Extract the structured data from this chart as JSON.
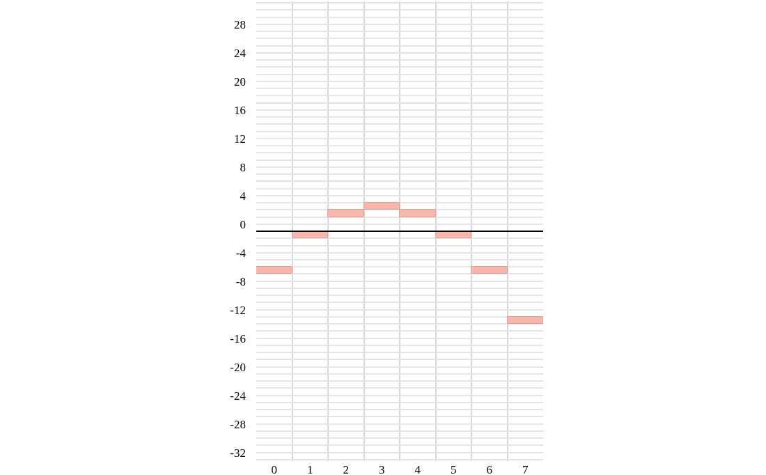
{
  "chart_data": {
    "type": "bar",
    "categories": [
      "0",
      "1",
      "2",
      "3",
      "4",
      "5",
      "6",
      "7"
    ],
    "values": [
      1,
      1,
      1,
      1,
      1,
      1,
      1,
      1
    ],
    "base": [
      -7,
      -2,
      1,
      2,
      1,
      -2,
      -7,
      -14
    ],
    "color": "#f9b6ab",
    "ylim": [
      -33.2,
      31.2
    ],
    "yticks": [
      {
        "value": -33,
        "label": null
      },
      -32,
      {
        "value": -31,
        "label": null
      },
      {
        "value": -30,
        "label": null
      },
      {
        "value": -29,
        "label": null
      },
      -28,
      {
        "value": -27,
        "label": null
      },
      {
        "value": -26,
        "label": null
      },
      {
        "value": -25,
        "label": null
      },
      -24,
      {
        "value": -23,
        "label": null
      },
      {
        "value": -22,
        "label": null
      },
      {
        "value": -21,
        "label": null
      },
      -20,
      {
        "value": -19,
        "label": null
      },
      {
        "value": -18,
        "label": null
      },
      {
        "value": -17,
        "label": null
      },
      -16,
      {
        "value": -15,
        "label": null
      },
      {
        "value": -14,
        "label": null
      },
      {
        "value": -13,
        "label": null
      },
      -12,
      {
        "value": -11,
        "label": null
      },
      {
        "value": -10,
        "label": null
      },
      {
        "value": -9,
        "label": null
      },
      -8,
      {
        "value": -7,
        "label": null
      },
      {
        "value": -6,
        "label": null
      },
      {
        "value": -5,
        "label": null
      },
      -4,
      {
        "value": -3,
        "label": null
      },
      {
        "value": -2,
        "label": null
      },
      {
        "value": -1,
        "label": null
      },
      0,
      {
        "value": 1,
        "label": null
      },
      {
        "value": 2,
        "label": null
      },
      {
        "value": 3,
        "label": null
      },
      4,
      {
        "value": 5,
        "label": null
      },
      {
        "value": 6,
        "label": null
      },
      {
        "value": 7,
        "label": null
      },
      8,
      {
        "value": 9,
        "label": null
      },
      {
        "value": 10,
        "label": null
      },
      {
        "value": 11,
        "label": null
      },
      12,
      {
        "value": 13,
        "label": null
      },
      {
        "value": 14,
        "label": null
      },
      {
        "value": 15,
        "label": null
      },
      16,
      {
        "value": 17,
        "label": null
      },
      {
        "value": 18,
        "label": null
      },
      {
        "value": 19,
        "label": null
      },
      20,
      {
        "value": 21,
        "label": null
      },
      {
        "value": 22,
        "label": null
      },
      {
        "value": 23,
        "label": null
      },
      24,
      {
        "value": 25,
        "label": null
      },
      {
        "value": 26,
        "label": null
      },
      {
        "value": 27,
        "label": null
      },
      28,
      {
        "value": 29,
        "label": null
      },
      {
        "value": 30,
        "label": null
      },
      {
        "value": 31,
        "label": null
      }
    ],
    "grid": true,
    "ref_lines": [
      {
        "axis": "y",
        "value": -1,
        "color": "#000000"
      }
    ]
  }
}
